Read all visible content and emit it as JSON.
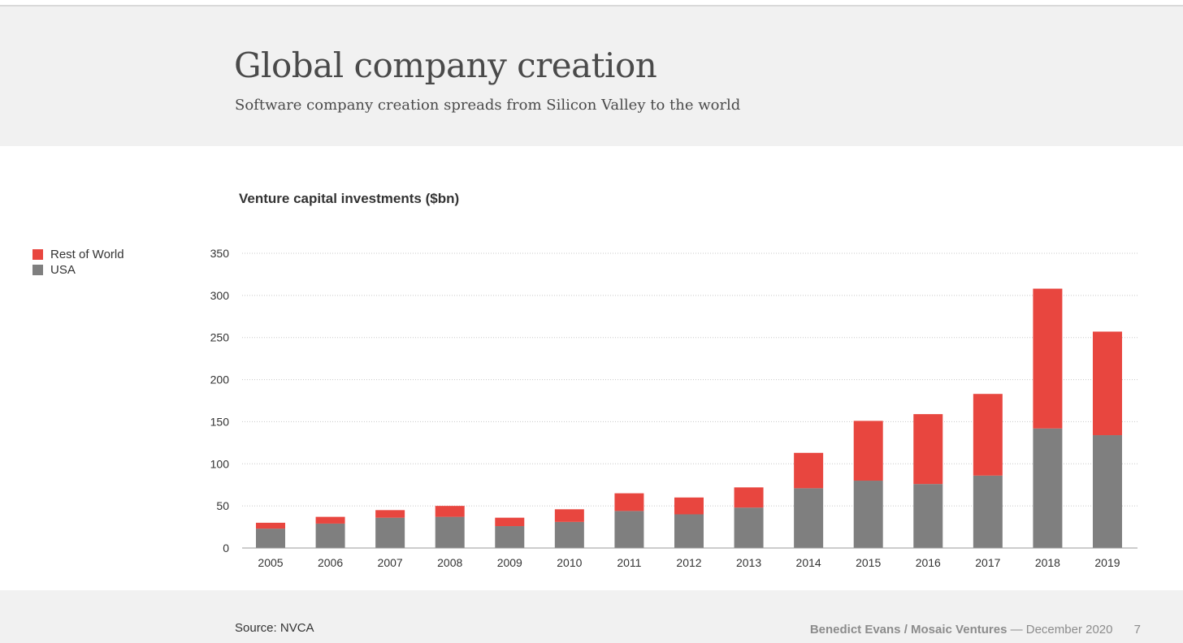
{
  "header": {
    "title": "Global company creation",
    "subtitle": "Software company creation spreads from Silicon Valley to the world"
  },
  "footer": {
    "source": "Source: NVCA",
    "author": "Benedict Evans / Mosaic Ventures",
    "date": "— December 2020",
    "page_number": "7"
  },
  "colors": {
    "rest_of_world": "#e8463f",
    "usa": "#7f7f7f"
  },
  "chart_data": {
    "type": "bar",
    "stacked": true,
    "title": "Venture capital investments ($bn)",
    "xlabel": "",
    "ylabel": "",
    "ylim": [
      0,
      350
    ],
    "yticks": [
      0,
      50,
      100,
      150,
      200,
      250,
      300,
      350
    ],
    "grid": true,
    "legend_position": "left-top",
    "categories": [
      "2005",
      "2006",
      "2007",
      "2008",
      "2009",
      "2010",
      "2011",
      "2012",
      "2013",
      "2014",
      "2015",
      "2016",
      "2017",
      "2018",
      "2019"
    ],
    "series": [
      {
        "name": "USA",
        "values": [
          23,
          29,
          36,
          37,
          26,
          31,
          44,
          40,
          48,
          71,
          80,
          76,
          86,
          142,
          134
        ]
      },
      {
        "name": "Rest of World",
        "values": [
          7,
          8,
          9,
          13,
          10,
          15,
          21,
          20,
          24,
          42,
          71,
          83,
          97,
          166,
          123
        ]
      }
    ]
  }
}
